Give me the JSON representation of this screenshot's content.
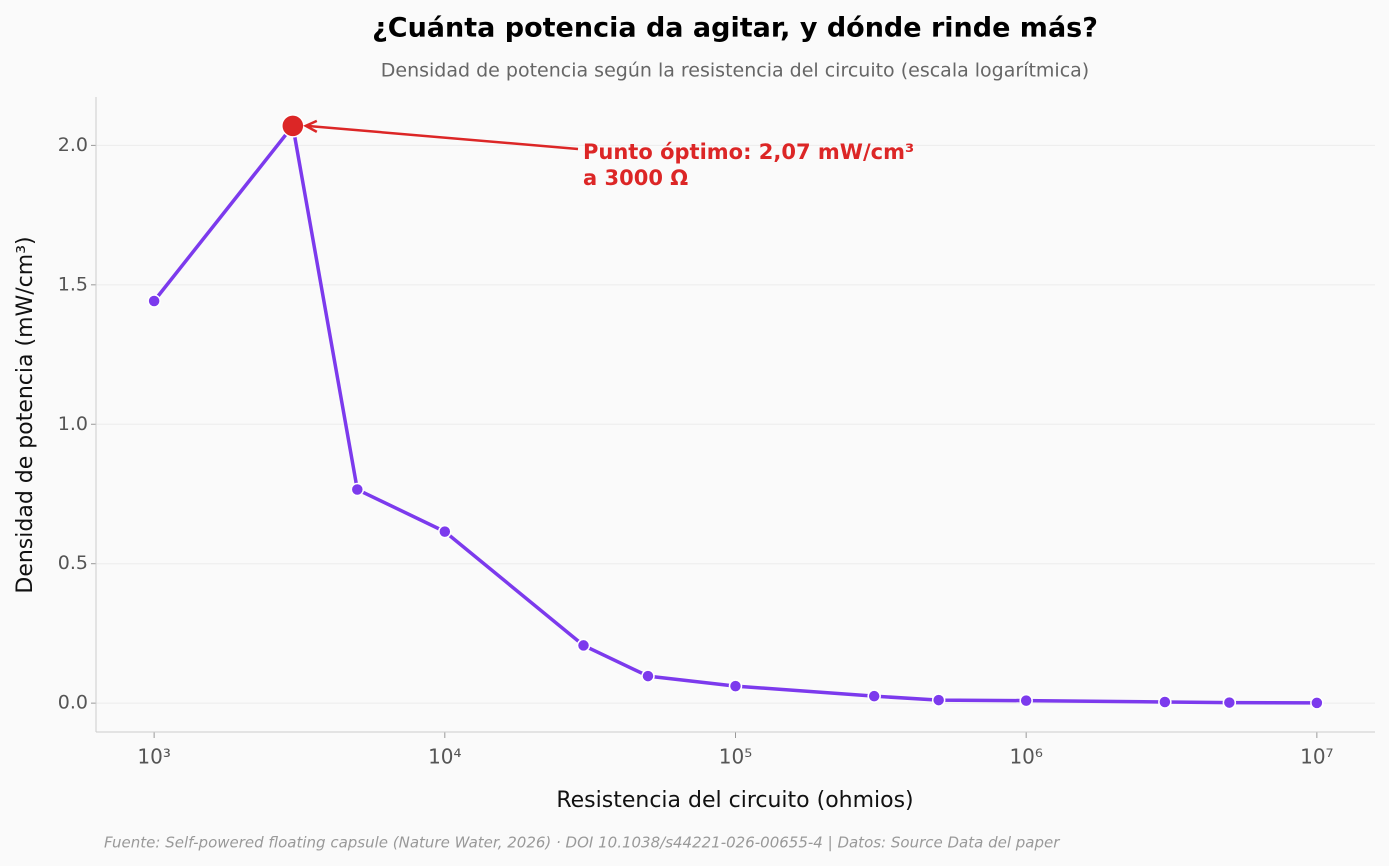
{
  "chart_data": {
    "type": "line",
    "title": "¿Cuánta potencia da agitar, y dónde rinde más?",
    "subtitle": "Densidad de potencia según la resistencia del circuito (escala logarítmica)",
    "x_label": "Resistencia del circuito (ohmios)",
    "y_label": "Densidad de potencia (mW/cm³)",
    "source": "Fuente: Self-powered floating capsule (Nature Water, 2026) · DOI 10.1038/s44221-026-00655-4 | Datos: Source Data del paper",
    "x_scale": "log",
    "x": [
      1000,
      3000,
      5000,
      10000,
      30000,
      50000,
      100000,
      300000,
      500000,
      1000000,
      3000000,
      5000000,
      10000000
    ],
    "series": [
      {
        "name": "Densidad de potencia",
        "color": "#7c3aed",
        "values": [
          1.442,
          2.07,
          0.766,
          0.615,
          0.207,
          0.097,
          0.061,
          0.025,
          0.011,
          0.009,
          0.004,
          0.002,
          0.001
        ]
      }
    ],
    "annotation": {
      "lines": [
        "Punto óptimo: 2,07 mW/cm³",
        "a 3000 Ω"
      ],
      "color": "#dc2626"
    },
    "xlim": [
      631,
      15850000
    ],
    "ylim": [
      -0.1035,
      2.1735
    ],
    "xticks": [
      {
        "value": 1000,
        "label": "10³"
      },
      {
        "value": 10000,
        "label": "10⁴"
      },
      {
        "value": 100000,
        "label": "10⁵"
      },
      {
        "value": 1000000,
        "label": "10⁶"
      },
      {
        "value": 10000000,
        "label": "10⁷"
      }
    ],
    "yticks": [
      {
        "value": 0,
        "label": "0.0"
      },
      {
        "value": 0.5,
        "label": "0.5"
      },
      {
        "value": 1,
        "label": "1.0"
      },
      {
        "value": 1.5,
        "label": "1.5"
      },
      {
        "value": 2,
        "label": "2.0"
      }
    ],
    "grid": true
  }
}
